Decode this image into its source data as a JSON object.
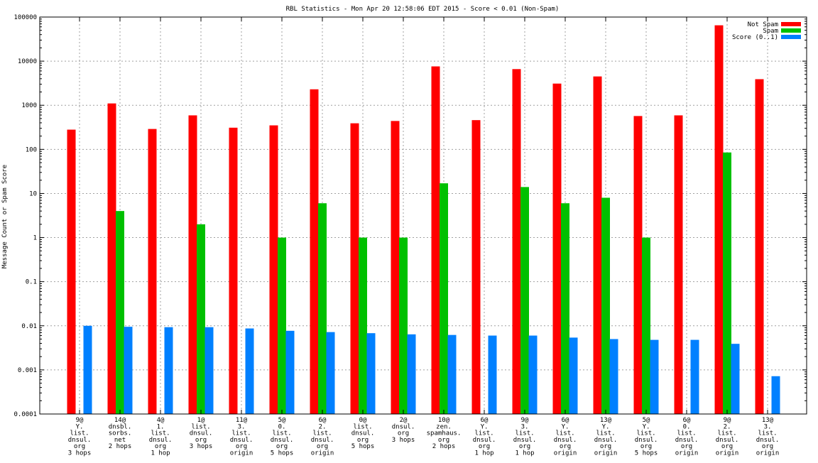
{
  "chart_data": {
    "type": "bar",
    "title": "RBL Statistics - Mon Apr 20 12:58:06 EDT 2015 - Score < 0.01 (Non-Spam)",
    "ylabel": "Message Count or Spam Score",
    "xlabel": "",
    "yscale": "log",
    "ylim": [
      0.0001,
      100000
    ],
    "yticks": [
      "0.0001",
      "0.001",
      "0.01",
      "0.1",
      "1",
      "10",
      "100",
      "1000",
      "10000",
      "100000"
    ],
    "grid": true,
    "legend_position": "top-right",
    "categories": [
      "9@ Y. list. dnsul. org 3 hops",
      "14@ dnsbl. sorbs. net 2 hops",
      "4@ 1. list. dnsul. org 1 hop",
      "1@ list. dnsul. org 3 hops",
      "11@ 3. list. dnsul. org origin",
      "5@ 0. list. dnsul. org 5 hops",
      "6@ 2. list. dnsul. org origin",
      "0@ list. dnsul. org 5 hops",
      "2@ dnsul. org 3 hops",
      "10@ zen. spamhaus. org 2 hops",
      "6@ Y. list. dnsul. org 1 hop",
      "9@ 3. list. dnsul. org 1 hop",
      "6@ Y. list. dnsul. org origin",
      "13@ Y. list. dnsul. org origin",
      "5@ Y. list. dnsul. org 5 hops",
      "6@ 0. list. dnsul. org origin",
      "9@ 2. list. dnsul. org origin",
      "13@ 3. list. dnsul. org origin"
    ],
    "category_lines": [
      [
        "9@",
        "Y.",
        "list.",
        "dnsul.",
        "org",
        "3 hops"
      ],
      [
        "14@",
        "dnsbl.",
        "sorbs.",
        "net",
        "2 hops"
      ],
      [
        "4@",
        "1.",
        "list.",
        "dnsul.",
        "org",
        "1 hop"
      ],
      [
        "1@",
        "list.",
        "dnsul.",
        "org",
        "3 hops"
      ],
      [
        "11@",
        "3.",
        "list.",
        "dnsul.",
        "org",
        "origin"
      ],
      [
        "5@",
        "0.",
        "list.",
        "dnsul.",
        "org",
        "5 hops"
      ],
      [
        "6@",
        "2.",
        "list.",
        "dnsul.",
        "org",
        "origin"
      ],
      [
        "0@",
        "list.",
        "dnsul.",
        "org",
        "5 hops"
      ],
      [
        "2@",
        "dnsul.",
        "org",
        "3 hops"
      ],
      [
        "10@",
        "zen.",
        "spamhaus.",
        "org",
        "2 hops"
      ],
      [
        "6@",
        "Y.",
        "list.",
        "dnsul.",
        "org",
        "1 hop"
      ],
      [
        "9@",
        "3.",
        "list.",
        "dnsul.",
        "org",
        "1 hop"
      ],
      [
        "6@",
        "Y.",
        "list.",
        "dnsul.",
        "org",
        "origin"
      ],
      [
        "13@",
        "Y.",
        "list.",
        "dnsul.",
        "org",
        "origin"
      ],
      [
        "5@",
        "Y.",
        "list.",
        "dnsul.",
        "org",
        "5 hops"
      ],
      [
        "6@",
        "0.",
        "list.",
        "dnsul.",
        "org",
        "origin"
      ],
      [
        "9@",
        "2.",
        "list.",
        "dnsul.",
        "org",
        "origin"
      ],
      [
        "13@",
        "3.",
        "list.",
        "dnsul.",
        "org",
        "origin"
      ]
    ],
    "series": [
      {
        "name": "Not Spam",
        "color": "#ff0000",
        "values": [
          280,
          1100,
          290,
          590,
          310,
          350,
          2300,
          390,
          440,
          7600,
          460,
          6600,
          3100,
          4500,
          570,
          590,
          65000,
          3900
        ]
      },
      {
        "name": "Spam",
        "color": "#00c000",
        "values": [
          null,
          4,
          null,
          2,
          null,
          1,
          6,
          1,
          1,
          17,
          null,
          14,
          6,
          8,
          1,
          null,
          85,
          null
        ]
      },
      {
        "name": "Score (0..1)",
        "color": "#0080ff",
        "values": [
          0.01,
          0.0095,
          0.0093,
          0.0093,
          0.0087,
          0.0077,
          0.0072,
          0.0068,
          0.0064,
          0.0062,
          0.006,
          0.006,
          0.0054,
          0.005,
          0.0048,
          0.0048,
          0.0039,
          0.00072
        ]
      }
    ]
  }
}
